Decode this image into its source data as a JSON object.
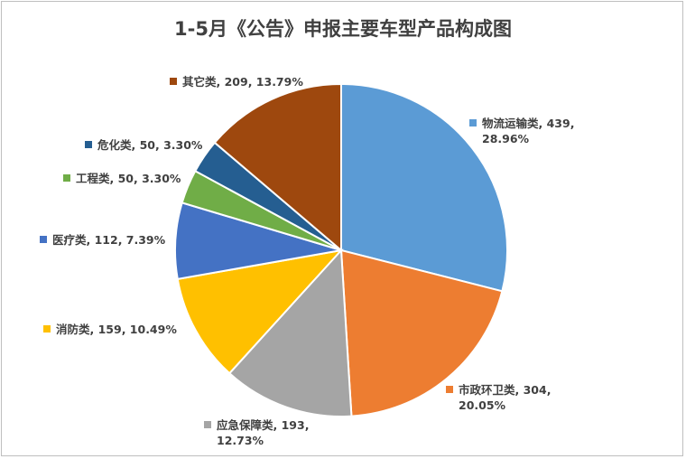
{
  "chart_data": {
    "type": "pie",
    "title": "1-5月《公告》申报主要车型产品构成图",
    "slices": [
      {
        "label": "物流运输类",
        "value": 439,
        "percent": "28.96%",
        "color": "#5b9bd5"
      },
      {
        "label": "市政环卫类",
        "value": 304,
        "percent": "20.05%",
        "color": "#ed7d31"
      },
      {
        "label": "应急保障类",
        "value": 193,
        "percent": "12.73%",
        "color": "#a5a5a5"
      },
      {
        "label": "消防类",
        "value": 159,
        "percent": "10.49%",
        "color": "#ffc000"
      },
      {
        "label": "医疗类",
        "value": 112,
        "percent": "7.39%",
        "color": "#4472c4"
      },
      {
        "label": "工程类",
        "value": 50,
        "percent": "3.30%",
        "color": "#70ad47"
      },
      {
        "label": "危化类",
        "value": 50,
        "percent": "3.30%",
        "color": "#255e91"
      },
      {
        "label": "其它类",
        "value": 209,
        "percent": "13.79%",
        "color": "#9e480e"
      }
    ],
    "labels": [
      {
        "line1": "物流运输类, 439,",
        "line2": "28.96%"
      },
      {
        "line1": "市政环卫类, 304,",
        "line2": "20.05%"
      },
      {
        "line1": "应急保障类, 193,",
        "line2": "12.73%"
      },
      {
        "line1": "消防类, 159, 10.49%",
        "line2": ""
      },
      {
        "line1": "医疗类, 112, 7.39%",
        "line2": ""
      },
      {
        "line1": "工程类, 50, 3.30%",
        "line2": ""
      },
      {
        "line1": "危化类, 50, 3.30%",
        "line2": ""
      },
      {
        "line1": "其它类, 209, 13.79%",
        "line2": ""
      }
    ],
    "legend_position": "none (data labels)"
  }
}
